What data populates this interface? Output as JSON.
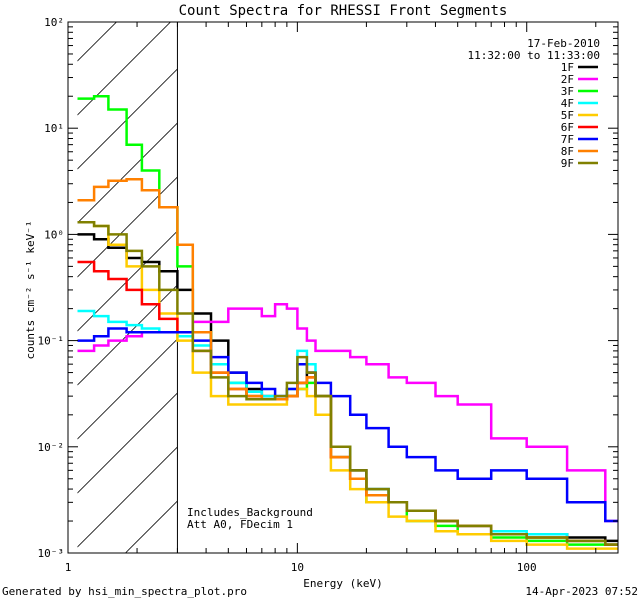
{
  "chart_data": {
    "type": "line",
    "title": "Count Spectra for RHESSI Front Segments",
    "xlabel": "Energy (keV)",
    "ylabel": "counts cm⁻² s⁻¹ keV⁻¹",
    "xscale": "log",
    "yscale": "log",
    "xlim": [
      1,
      250
    ],
    "ylim": [
      0.001,
      100
    ],
    "x_ticks": [
      {
        "value": 1,
        "label": "1"
      },
      {
        "value": 10,
        "label": "10"
      },
      {
        "value": 100,
        "label": "100"
      }
    ],
    "y_ticks": [
      {
        "value": 0.001,
        "label": "10⁻³"
      },
      {
        "value": 0.01,
        "label": "10⁻²"
      },
      {
        "value": 0.1,
        "label": "10⁻¹"
      },
      {
        "value": 1,
        "label": "10⁰"
      },
      {
        "value": 10,
        "label": "10¹"
      },
      {
        "value": 100,
        "label": "10²"
      }
    ],
    "hatched_region_keV": [
      1.1,
      3.0
    ],
    "info_date": "17-Feb-2010",
    "info_time": "11:32:00 to 11:33:00",
    "annotations": [
      "Includes_Background",
      "Att A0, FDecim 1"
    ],
    "legend_position": "top-right",
    "series": [
      {
        "name": "1F",
        "color": "#000000",
        "x": [
          1.1,
          1.3,
          1.5,
          1.8,
          2.1,
          2.5,
          3.0,
          3.5,
          4.2,
          5,
          6,
          7,
          8,
          9,
          10,
          11,
          12,
          14,
          17,
          20,
          25,
          30,
          40,
          50,
          70,
          100,
          150,
          220
        ],
        "y": [
          1.0,
          0.9,
          0.75,
          0.6,
          0.55,
          0.45,
          0.3,
          0.18,
          0.1,
          0.05,
          0.035,
          0.03,
          0.028,
          0.03,
          0.04,
          0.05,
          0.03,
          0.01,
          0.006,
          0.004,
          0.003,
          0.0025,
          0.002,
          0.0018,
          0.0015,
          0.0015,
          0.0014,
          0.0013
        ]
      },
      {
        "name": "2F",
        "color": "#ff00ff",
        "x": [
          1.1,
          1.3,
          1.5,
          1.8,
          2.1,
          2.5,
          3.0,
          3.5,
          4.2,
          5,
          6,
          7,
          8,
          9,
          10,
          11,
          12,
          14,
          17,
          20,
          25,
          30,
          40,
          50,
          70,
          100,
          150,
          220
        ],
        "y": [
          0.08,
          0.09,
          0.1,
          0.11,
          0.12,
          0.12,
          0.12,
          0.15,
          0.15,
          0.2,
          0.2,
          0.17,
          0.22,
          0.2,
          0.13,
          0.1,
          0.08,
          0.08,
          0.07,
          0.06,
          0.045,
          0.04,
          0.03,
          0.025,
          0.012,
          0.01,
          0.006,
          0.002
        ]
      },
      {
        "name": "3F",
        "color": "#00ff00",
        "x": [
          1.1,
          1.3,
          1.5,
          1.8,
          2.1,
          2.5,
          3.0,
          3.5,
          4.2,
          5,
          6,
          7,
          8,
          9,
          10,
          11,
          12,
          14,
          17,
          20,
          25,
          30,
          40,
          50,
          70,
          100,
          150,
          220
        ],
        "y": [
          19,
          20,
          15,
          7,
          4,
          1.8,
          0.5,
          0.12,
          0.06,
          0.04,
          0.03,
          0.028,
          0.028,
          0.03,
          0.035,
          0.04,
          0.03,
          0.008,
          0.005,
          0.003,
          0.003,
          0.002,
          0.0018,
          0.0015,
          0.0014,
          0.0013,
          0.0012,
          0.0012
        ]
      },
      {
        "name": "4F",
        "color": "#00ffff",
        "x": [
          1.1,
          1.3,
          1.5,
          1.8,
          2.1,
          2.5,
          3.0,
          3.5,
          4.2,
          5,
          6,
          7,
          8,
          9,
          10,
          11,
          12,
          14,
          17,
          20,
          25,
          30,
          40,
          50,
          70,
          100,
          150,
          220
        ],
        "y": [
          0.19,
          0.17,
          0.15,
          0.14,
          0.13,
          0.12,
          0.11,
          0.09,
          0.06,
          0.04,
          0.033,
          0.03,
          0.03,
          0.035,
          0.08,
          0.06,
          0.03,
          0.01,
          0.005,
          0.004,
          0.003,
          0.0025,
          0.002,
          0.0018,
          0.0016,
          0.0015,
          0.0013,
          0.0012
        ]
      },
      {
        "name": "5F",
        "color": "#ffcc00",
        "x": [
          1.1,
          1.3,
          1.5,
          1.8,
          2.1,
          2.5,
          3.0,
          3.5,
          4.2,
          5,
          6,
          7,
          8,
          9,
          10,
          11,
          12,
          14,
          17,
          20,
          25,
          30,
          40,
          50,
          70,
          100,
          150,
          220
        ],
        "y": [
          1.3,
          1.2,
          0.8,
          0.5,
          0.3,
          0.18,
          0.1,
          0.05,
          0.03,
          0.025,
          0.025,
          0.025,
          0.025,
          0.03,
          0.035,
          0.03,
          0.02,
          0.006,
          0.004,
          0.003,
          0.0022,
          0.002,
          0.0016,
          0.0015,
          0.0013,
          0.0012,
          0.0011,
          0.0011
        ]
      },
      {
        "name": "6F",
        "color": "#ff0000",
        "x": [
          1.1,
          1.3,
          1.5,
          1.8,
          2.1,
          2.5,
          3.0,
          3.5,
          4.2,
          5,
          6,
          7,
          8,
          9,
          10,
          11,
          12,
          14,
          17,
          20,
          25,
          30,
          40,
          50,
          70,
          100,
          150,
          220
        ],
        "y": [
          0.55,
          0.45,
          0.38,
          0.3,
          0.22,
          0.16,
          0.12,
          0.08,
          0.05,
          0.035,
          0.03,
          0.028,
          0.028,
          0.03,
          0.04,
          0.045,
          0.03,
          0.008,
          0.005,
          0.0035,
          0.003,
          0.0025,
          0.002,
          0.0018,
          0.0015,
          0.0014,
          0.0013,
          0.0012
        ]
      },
      {
        "name": "7F",
        "color": "#0000ff",
        "x": [
          1.1,
          1.3,
          1.5,
          1.8,
          2.1,
          2.5,
          3.0,
          3.5,
          4.2,
          5,
          6,
          7,
          8,
          9,
          10,
          11,
          12,
          14,
          17,
          20,
          25,
          30,
          40,
          50,
          70,
          100,
          150,
          220
        ],
        "y": [
          0.1,
          0.11,
          0.13,
          0.12,
          0.12,
          0.12,
          0.12,
          0.1,
          0.07,
          0.05,
          0.04,
          0.035,
          0.03,
          0.035,
          0.06,
          0.05,
          0.04,
          0.03,
          0.02,
          0.015,
          0.01,
          0.008,
          0.006,
          0.005,
          0.006,
          0.005,
          0.003,
          0.002
        ]
      },
      {
        "name": "8F",
        "color": "#ff8000",
        "x": [
          1.1,
          1.3,
          1.5,
          1.8,
          2.1,
          2.5,
          3.0,
          3.5,
          4.2,
          5,
          6,
          7,
          8,
          9,
          10,
          11,
          12,
          14,
          17,
          20,
          25,
          30,
          40,
          50,
          70,
          100,
          150,
          220
        ],
        "y": [
          2.1,
          2.8,
          3.2,
          3.3,
          2.6,
          1.8,
          0.8,
          0.12,
          0.05,
          0.035,
          0.03,
          0.028,
          0.028,
          0.03,
          0.04,
          0.045,
          0.03,
          0.008,
          0.005,
          0.0035,
          0.003,
          0.0025,
          0.002,
          0.0018,
          0.0015,
          0.0014,
          0.0013,
          0.0012
        ]
      },
      {
        "name": "9F",
        "color": "#808000",
        "x": [
          1.1,
          1.3,
          1.5,
          1.8,
          2.1,
          2.5,
          3.0,
          3.5,
          4.2,
          5,
          6,
          7,
          8,
          9,
          10,
          11,
          12,
          14,
          17,
          20,
          25,
          30,
          40,
          50,
          70,
          100,
          150,
          220
        ],
        "y": [
          1.3,
          1.2,
          1.0,
          0.7,
          0.5,
          0.3,
          0.18,
          0.08,
          0.045,
          0.03,
          0.028,
          0.028,
          0.03,
          0.04,
          0.07,
          0.05,
          0.03,
          0.01,
          0.006,
          0.004,
          0.003,
          0.0025,
          0.002,
          0.0018,
          0.0015,
          0.0014,
          0.0013,
          0.0012
        ]
      }
    ]
  },
  "footer": {
    "generated_by": "Generated by hsi_min_spectra_plot.pro",
    "timestamp": "14-Apr-2023 07:52"
  }
}
